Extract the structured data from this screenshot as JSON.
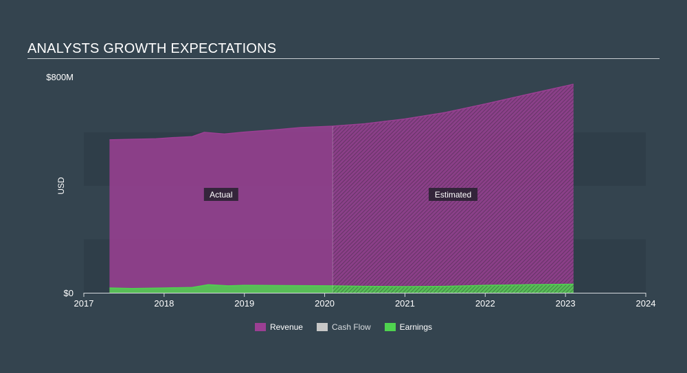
{
  "title": "ANALYSTS GROWTH EXPECTATIONS",
  "chart_data": {
    "type": "area",
    "title": "ANALYSTS GROWTH EXPECTATIONS",
    "ylabel": "USD",
    "xlabel": "",
    "ylim": [
      0,
      800
    ],
    "y_unit": "M",
    "y_tick_labels": [
      {
        "value": 0,
        "label": "$0"
      },
      {
        "value": 800,
        "label": "$800M"
      }
    ],
    "xlim": [
      2017,
      2024
    ],
    "x_tick_labels": [
      "2017",
      "2018",
      "2019",
      "2020",
      "2021",
      "2022",
      "2023",
      "2024"
    ],
    "forecast_start": 2020.1,
    "region_labels": {
      "actual": "Actual",
      "estimated": "Estimated"
    },
    "grid": false,
    "legend_position": "bottom",
    "series": [
      {
        "name": "Revenue",
        "color": "#9b3f93",
        "points": [
          [
            2017.32,
            572
          ],
          [
            2017.6,
            574
          ],
          [
            2017.9,
            576
          ],
          [
            2018.1,
            580
          ],
          [
            2018.35,
            584
          ],
          [
            2018.5,
            600
          ],
          [
            2018.75,
            594
          ],
          [
            2019.0,
            601
          ],
          [
            2019.4,
            610
          ],
          [
            2019.7,
            618
          ],
          [
            2020.1,
            623
          ],
          [
            2020.5,
            632
          ],
          [
            2021.0,
            650
          ],
          [
            2021.5,
            674
          ],
          [
            2022.0,
            706
          ],
          [
            2022.5,
            740
          ],
          [
            2023.1,
            780
          ]
        ]
      },
      {
        "name": "Cash Flow",
        "color": "#c7c7c7",
        "points": []
      },
      {
        "name": "Earnings",
        "color": "#4fd34f",
        "points": [
          [
            2017.32,
            18
          ],
          [
            2017.6,
            16
          ],
          [
            2018.0,
            18
          ],
          [
            2018.35,
            20
          ],
          [
            2018.55,
            30
          ],
          [
            2018.8,
            26
          ],
          [
            2019.0,
            28
          ],
          [
            2019.5,
            27
          ],
          [
            2020.1,
            26
          ],
          [
            2020.5,
            24
          ],
          [
            2021.0,
            23
          ],
          [
            2021.5,
            24
          ],
          [
            2022.0,
            28
          ],
          [
            2022.5,
            30
          ],
          [
            2023.1,
            32
          ]
        ]
      }
    ]
  }
}
